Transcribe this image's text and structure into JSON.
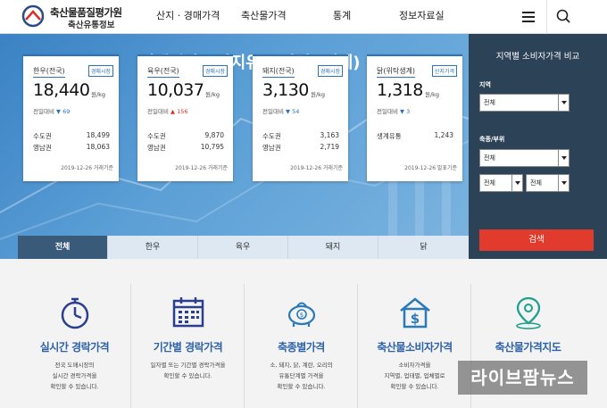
{
  "header": {
    "logo_line1": "축산물품질평가원",
    "logo_line2": "축산유통정보",
    "nav": [
      "산지 · 경매가격",
      "축산물가격",
      "통계",
      "정보자료실"
    ]
  },
  "hero": {
    "title": "경매시장 · 산지유통 가격 (전체)",
    "cards": [
      {
        "name": "한우(전국)",
        "tag": "경매시장",
        "price": "18,440",
        "unit": "원/kg",
        "change_label": "전일대비",
        "change": "▼ 69",
        "rows": [
          {
            "label": "수도권",
            "value": "18,499"
          },
          {
            "label": "영남권",
            "value": "18,063"
          }
        ],
        "date": "2019-12-26 거래기준"
      },
      {
        "name": "육우(전국)",
        "tag": "경매시장",
        "price": "10,037",
        "unit": "원/kg",
        "change_label": "전일대비",
        "change": "▲ 156",
        "rows": [
          {
            "label": "수도권",
            "value": "9,870"
          },
          {
            "label": "영남권",
            "value": "10,795"
          }
        ],
        "date": "2019-12-26 거래기준"
      },
      {
        "name": "돼지(전국)",
        "tag": "경매시장",
        "price": "3,130",
        "unit": "원/kg",
        "change_label": "전일대비",
        "change": "▼ 54",
        "rows": [
          {
            "label": "수도권",
            "value": "3,163"
          },
          {
            "label": "영남권",
            "value": "2,719"
          }
        ],
        "date": "2019-12-26 거래기준"
      },
      {
        "name": "닭(위탁생계)",
        "tag": "산지가격",
        "price": "1,318",
        "unit": "원/kg",
        "change_label": "전일대비",
        "change": "▼ 3",
        "rows": [
          {
            "label": "생계유통",
            "value": "1,243"
          }
        ],
        "date": "2019-12-26 발표기준"
      }
    ],
    "tabs": [
      "전체",
      "한우",
      "육우",
      "돼지",
      "닭"
    ]
  },
  "side": {
    "title": "지역별 소비자가격 비교",
    "region_label": "지역",
    "region_value": "전체",
    "species_label": "축종/부위",
    "species_value": "전체",
    "part_values": [
      "전체",
      "전체"
    ],
    "search_label": "검색"
  },
  "services": [
    {
      "icon": "stopwatch-icon",
      "title": "실시간 경락가격",
      "desc": [
        "전국 도매시장의",
        "실시간 경락가격을",
        "확인할 수 있습니다."
      ]
    },
    {
      "icon": "calendar-icon",
      "title": "기간별 경락가격",
      "desc": [
        "일자별 또는 기간별 경락가격을",
        "확인할 수 있습니다."
      ]
    },
    {
      "icon": "piggy-bank-icon",
      "title": "축종별가격",
      "desc": [
        "소, 돼지, 닭, 계란, 오리의",
        "유통단계별 가격을",
        "확인할 수 있습니다."
      ]
    },
    {
      "icon": "house-price-icon",
      "title": "축산물소비자가격",
      "desc": [
        "소비자가격을",
        "지역별, 업태별, 업체별로",
        "확인할 수 있습니다."
      ]
    },
    {
      "icon": "map-pin-icon",
      "title": "축산물가격지도",
      "desc": [
        "",
        "",
        ""
      ]
    }
  ],
  "watermark": "라이브팜뉴스",
  "colors": {
    "accent": "#2e72b8",
    "up": "#d9302c",
    "down": "#2e72b8",
    "side_bg": "#2c4256",
    "search": "#e03b2c"
  }
}
